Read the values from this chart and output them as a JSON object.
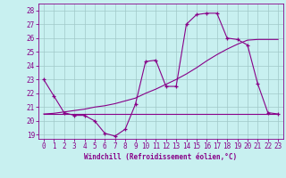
{
  "xlabel": "Windchill (Refroidissement éolien,°C)",
  "background_color": "#c8f0f0",
  "line_color": "#880088",
  "grid_color": "#a0c8c8",
  "xlim": [
    -0.5,
    23.5
  ],
  "ylim": [
    18.7,
    28.5
  ],
  "yticks": [
    19,
    20,
    21,
    22,
    23,
    24,
    25,
    26,
    27,
    28
  ],
  "xticks": [
    0,
    1,
    2,
    3,
    4,
    5,
    6,
    7,
    8,
    9,
    10,
    11,
    12,
    13,
    14,
    15,
    16,
    17,
    18,
    19,
    20,
    21,
    22,
    23
  ],
  "line1_x": [
    0,
    1,
    2,
    3,
    4,
    5,
    6,
    7,
    8,
    9,
    10,
    11,
    12,
    13,
    14,
    15,
    16,
    17,
    18,
    19,
    20,
    21,
    22,
    23
  ],
  "line1_y": [
    23.0,
    21.8,
    20.6,
    20.4,
    20.4,
    20.0,
    19.1,
    18.9,
    19.4,
    21.2,
    24.3,
    24.4,
    22.5,
    22.5,
    27.0,
    27.7,
    27.8,
    27.8,
    26.0,
    25.9,
    25.5,
    22.7,
    20.6,
    20.5
  ],
  "line2_x": [
    0,
    1,
    2,
    3,
    4,
    5,
    6,
    7,
    8,
    9,
    10,
    11,
    12,
    13,
    14,
    15,
    16,
    17,
    18,
    19,
    20,
    21,
    22,
    23
  ],
  "line2_y": [
    20.5,
    20.5,
    20.5,
    20.5,
    20.5,
    20.5,
    20.5,
    20.5,
    20.5,
    20.5,
    20.5,
    20.5,
    20.5,
    20.5,
    20.5,
    20.5,
    20.5,
    20.5,
    20.5,
    20.5,
    20.5,
    20.5,
    20.5,
    20.5
  ],
  "line3_x": [
    0,
    1,
    2,
    3,
    4,
    5,
    6,
    7,
    8,
    9,
    10,
    11,
    12,
    13,
    14,
    15,
    16,
    17,
    18,
    19,
    20,
    21,
    22,
    23
  ],
  "line3_y": [
    20.5,
    20.55,
    20.65,
    20.75,
    20.85,
    21.0,
    21.1,
    21.25,
    21.45,
    21.65,
    22.0,
    22.3,
    22.65,
    23.0,
    23.4,
    23.85,
    24.35,
    24.8,
    25.2,
    25.55,
    25.85,
    25.9,
    25.9,
    25.9
  ],
  "label_fontsize": 5.5,
  "tick_fontsize": 5.5
}
